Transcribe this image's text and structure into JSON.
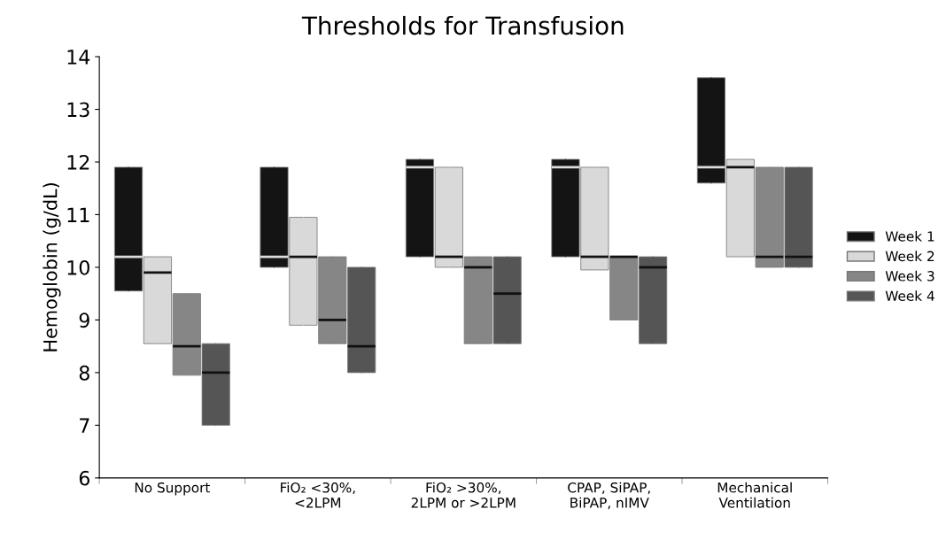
{
  "chart_data": {
    "type": "box",
    "title": "Thresholds for Transfusion",
    "ylabel": "Hemoglobin (g/dL)",
    "categories": [
      "No Support",
      "FiO₂ <30%,\n<2LPM",
      "FiO₂ >30%,\n2LPM or >2LPM",
      "CPAP, SiPAP,\nBiPAP, nIMV",
      "Mechanical\nVentilation"
    ],
    "ylim": [
      6,
      14
    ],
    "yticks": [
      6,
      7,
      8,
      9,
      10,
      11,
      12,
      13,
      14
    ],
    "grid": false,
    "legend": "right",
    "series": [
      {
        "name": "Week 1",
        "color": "#141414",
        "boxes": [
          {
            "low": 9.55,
            "q1": 9.55,
            "median": 10.2,
            "q3": 11.9,
            "high": 11.9
          },
          {
            "low": 10.0,
            "q1": 10.0,
            "median": 10.2,
            "q3": 11.9,
            "high": 11.9
          },
          {
            "low": 10.2,
            "q1": 10.2,
            "median": 11.9,
            "q3": 12.05,
            "high": 12.05
          },
          {
            "low": 10.2,
            "q1": 10.2,
            "median": 11.9,
            "q3": 12.05,
            "high": 12.05
          },
          {
            "low": 11.6,
            "q1": 11.6,
            "median": 11.9,
            "q3": 13.6,
            "high": 13.6
          }
        ]
      },
      {
        "name": "Week 2",
        "color": "#d9d9d9",
        "boxes": [
          {
            "low": 8.55,
            "q1": 8.55,
            "median": 9.9,
            "q3": 10.2,
            "high": 10.2
          },
          {
            "low": 8.9,
            "q1": 8.9,
            "median": 10.2,
            "q3": 10.95,
            "high": 10.95
          },
          {
            "low": 10.0,
            "q1": 10.0,
            "median": 10.2,
            "q3": 11.9,
            "high": 11.9
          },
          {
            "low": 9.95,
            "q1": 9.95,
            "median": 10.2,
            "q3": 11.9,
            "high": 11.9
          },
          {
            "low": 10.2,
            "q1": 10.2,
            "median": 11.9,
            "q3": 12.05,
            "high": 12.05
          }
        ]
      },
      {
        "name": "Week 3",
        "color": "#868686",
        "boxes": [
          {
            "low": 7.95,
            "q1": 7.95,
            "median": 8.5,
            "q3": 9.5,
            "high": 9.5
          },
          {
            "low": 8.55,
            "q1": 8.55,
            "median": 9.0,
            "q3": 10.2,
            "high": 10.2
          },
          {
            "low": 8.55,
            "q1": 8.55,
            "median": 10.0,
            "q3": 10.2,
            "high": 10.2
          },
          {
            "low": 9.0,
            "q1": 9.0,
            "median": 10.2,
            "q3": 10.2,
            "high": 10.2
          },
          {
            "low": 10.0,
            "q1": 10.0,
            "median": 10.2,
            "q3": 11.9,
            "high": 11.9
          }
        ]
      },
      {
        "name": "Week 4",
        "color": "#555555",
        "boxes": [
          {
            "low": 7.0,
            "q1": 7.0,
            "median": 8.0,
            "q3": 8.55,
            "high": 8.55
          },
          {
            "low": 8.0,
            "q1": 8.0,
            "median": 8.5,
            "q3": 10.0,
            "high": 10.0
          },
          {
            "low": 8.55,
            "q1": 8.55,
            "median": 9.5,
            "q3": 10.2,
            "high": 10.2
          },
          {
            "low": 8.55,
            "q1": 8.55,
            "median": 10.0,
            "q3": 10.2,
            "high": 10.2
          },
          {
            "low": 10.0,
            "q1": 10.0,
            "median": 10.2,
            "q3": 11.9,
            "high": 11.9
          }
        ]
      }
    ]
  }
}
